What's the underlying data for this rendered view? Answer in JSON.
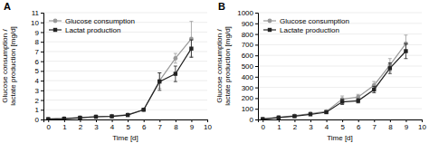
{
  "chart_data": [
    {
      "type": "line",
      "title": "A",
      "xlabel": "Time [d]",
      "ylabel": "Glucose consumption /\nlactate production [mg/d]",
      "x": [
        0,
        1,
        2,
        3,
        4,
        5,
        6,
        7,
        8,
        9
      ],
      "xlim": [
        -0.3,
        10
      ],
      "xticks": [
        0,
        1,
        2,
        3,
        4,
        5,
        6,
        7,
        8,
        9,
        10
      ],
      "ylim": [
        0,
        11
      ],
      "yticks": [
        0,
        1,
        2,
        3,
        4,
        5,
        6,
        7,
        8,
        9,
        10,
        11
      ],
      "grid": "y",
      "legend": "upper-left",
      "series": [
        {
          "name": "Glucose consumption",
          "color": "#999999",
          "marker": "circle",
          "values": [
            0.05,
            0.1,
            0.2,
            0.3,
            0.35,
            0.5,
            1.0,
            4.0,
            6.3,
            8.3
          ],
          "errors": [
            0.02,
            0.03,
            0.05,
            0.05,
            0.05,
            0.08,
            0.1,
            0.8,
            0.5,
            1.8
          ]
        },
        {
          "name": "Lactat production",
          "color": "#222222",
          "marker": "square",
          "values": [
            0.03,
            0.08,
            0.18,
            0.28,
            0.32,
            0.45,
            1.0,
            3.9,
            4.7,
            7.3
          ],
          "errors": [
            0.02,
            0.03,
            0.04,
            0.04,
            0.04,
            0.07,
            0.1,
            0.9,
            0.8,
            0.9
          ]
        }
      ]
    },
    {
      "type": "line",
      "title": "B",
      "xlabel": "Time [d]",
      "ylabel": "Glucose consumption /\nlactate production [mg/d]",
      "x": [
        0,
        1,
        2,
        3,
        4,
        5,
        6,
        7,
        8,
        9
      ],
      "xlim": [
        -0.3,
        10
      ],
      "xticks": [
        0,
        1,
        2,
        3,
        4,
        5,
        6,
        7,
        8,
        9,
        10
      ],
      "ylim": [
        0,
        1000
      ],
      "yticks": [
        0,
        100,
        200,
        300,
        400,
        500,
        600,
        700,
        800,
        900,
        1000
      ],
      "grid": "y",
      "legend": "upper-left",
      "series": [
        {
          "name": "Glucose consumption",
          "color": "#999999",
          "marker": "circle",
          "values": [
            5,
            20,
            35,
            55,
            75,
            190,
            210,
            320,
            510,
            710
          ],
          "errors": [
            2,
            5,
            8,
            10,
            15,
            30,
            25,
            35,
            60,
            80
          ]
        },
        {
          "name": "Lactate production",
          "color": "#222222",
          "marker": "square",
          "values": [
            3,
            18,
            30,
            48,
            68,
            165,
            175,
            280,
            480,
            640
          ],
          "errors": [
            2,
            4,
            7,
            8,
            10,
            25,
            20,
            30,
            50,
            70
          ]
        }
      ]
    }
  ]
}
